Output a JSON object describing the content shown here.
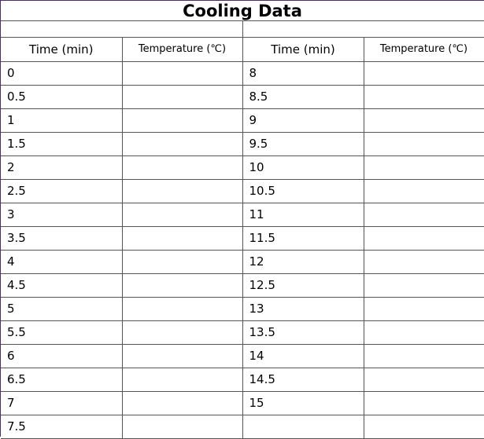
{
  "title": "Cooling Data",
  "headers": [
    "Time (min)",
    "Temperature (℃)",
    "Time (min)",
    "Temperature (℃)"
  ],
  "left_times": [
    "0",
    "0.5",
    "1",
    "1.5",
    "2",
    "2.5",
    "3",
    "3.5",
    "4",
    "4.5",
    "5",
    "5.5",
    "6",
    "6.5",
    "7",
    "7.5"
  ],
  "right_times": [
    "8",
    "8.5",
    "9",
    "9.5",
    "10",
    "10.5",
    "11",
    "11.5",
    "12",
    "12.5",
    "13",
    "13.5",
    "14",
    "14.5",
    "15",
    ""
  ]
}
